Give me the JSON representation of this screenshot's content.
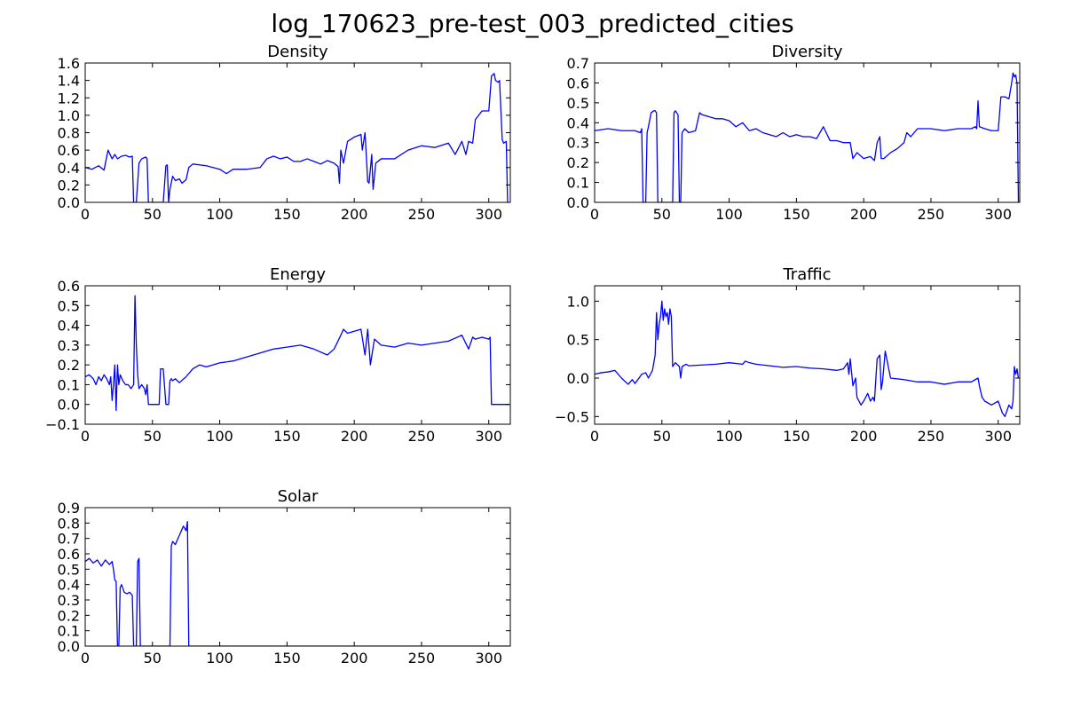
{
  "page": {
    "title": "log_170623_pre-test_003_predicted_cities"
  },
  "colors": {
    "line": "#0000ff",
    "axis": "#000000",
    "background": "#ffffff"
  },
  "chart_data": [
    {
      "type": "line",
      "title": "Density",
      "xlim": [
        0,
        316
      ],
      "ylim": [
        0.0,
        1.6
      ],
      "xticks": [
        0,
        50,
        100,
        150,
        200,
        250,
        300
      ],
      "yticks": [
        0.0,
        0.2,
        0.4,
        0.6,
        0.8,
        1.0,
        1.2,
        1.4,
        1.6
      ],
      "ytick_labels": [
        "0.0",
        "0.2",
        "0.4",
        "0.6",
        "0.8",
        "1.0",
        "1.2",
        "1.4",
        "1.6"
      ],
      "series": [
        {
          "x": [
            0,
            5,
            10,
            14,
            17,
            20,
            22,
            24,
            27,
            30,
            33,
            35,
            36,
            37,
            38,
            40,
            42,
            45,
            46,
            47,
            57,
            58,
            60,
            61,
            62,
            63,
            65,
            67,
            70,
            72,
            75,
            77,
            80,
            90,
            100,
            105,
            110,
            120,
            130,
            135,
            140,
            145,
            150,
            155,
            160,
            165,
            170,
            175,
            180,
            185,
            188,
            189,
            190,
            192,
            195,
            200,
            205,
            206,
            208,
            210,
            211,
            213,
            214,
            216,
            220,
            230,
            240,
            250,
            260,
            270,
            275,
            280,
            283,
            285,
            288,
            290,
            295,
            300,
            302,
            304,
            305,
            307,
            308,
            310,
            311,
            313,
            314,
            315
          ],
          "y": [
            0.4,
            0.38,
            0.42,
            0.37,
            0.6,
            0.5,
            0.55,
            0.5,
            0.53,
            0.54,
            0.52,
            0.53,
            0.0,
            0.0,
            0.0,
            0.45,
            0.5,
            0.52,
            0.5,
            0.0,
            0.0,
            0.0,
            0.42,
            0.43,
            0.0,
            0.15,
            0.3,
            0.25,
            0.27,
            0.22,
            0.26,
            0.4,
            0.44,
            0.42,
            0.38,
            0.33,
            0.38,
            0.38,
            0.4,
            0.5,
            0.53,
            0.5,
            0.52,
            0.47,
            0.47,
            0.5,
            0.47,
            0.44,
            0.48,
            0.45,
            0.41,
            0.22,
            0.6,
            0.45,
            0.7,
            0.75,
            0.78,
            0.6,
            0.8,
            0.24,
            0.22,
            0.55,
            0.15,
            0.45,
            0.5,
            0.5,
            0.6,
            0.65,
            0.63,
            0.68,
            0.55,
            0.7,
            0.55,
            0.7,
            0.68,
            0.95,
            1.05,
            1.05,
            1.45,
            1.48,
            1.4,
            1.38,
            1.4,
            0.72,
            0.68,
            0.7,
            0.0,
            0.0
          ]
        }
      ]
    },
    {
      "type": "line",
      "title": "Diversity",
      "xlim": [
        0,
        316
      ],
      "ylim": [
        0.0,
        0.7
      ],
      "xticks": [
        0,
        50,
        100,
        150,
        200,
        250,
        300
      ],
      "yticks": [
        0.0,
        0.1,
        0.2,
        0.3,
        0.4,
        0.5,
        0.6,
        0.7
      ],
      "ytick_labels": [
        "0.0",
        "0.1",
        "0.2",
        "0.3",
        "0.4",
        "0.5",
        "0.6",
        "0.7"
      ],
      "series": [
        {
          "x": [
            0,
            10,
            20,
            30,
            34,
            35,
            36,
            37,
            38,
            39,
            40,
            42,
            44,
            45,
            46,
            47,
            57,
            58,
            59,
            60,
            61,
            62,
            63,
            64,
            65,
            67,
            70,
            75,
            78,
            80,
            85,
            90,
            95,
            100,
            105,
            110,
            115,
            120,
            125,
            130,
            135,
            140,
            145,
            150,
            155,
            160,
            165,
            170,
            175,
            180,
            185,
            190,
            192,
            195,
            200,
            205,
            208,
            210,
            212,
            213,
            215,
            220,
            225,
            230,
            232,
            235,
            240,
            250,
            260,
            270,
            280,
            283,
            284,
            285,
            286,
            290,
            295,
            300,
            302,
            305,
            308,
            310,
            311,
            312,
            313,
            314,
            315
          ],
          "y": [
            0.36,
            0.37,
            0.36,
            0.36,
            0.35,
            0.37,
            0.0,
            0.0,
            0.0,
            0.35,
            0.38,
            0.45,
            0.46,
            0.46,
            0.45,
            0.0,
            0.0,
            0.0,
            0.45,
            0.46,
            0.45,
            0.44,
            0.0,
            0.0,
            0.35,
            0.37,
            0.35,
            0.36,
            0.45,
            0.44,
            0.43,
            0.42,
            0.42,
            0.41,
            0.38,
            0.4,
            0.36,
            0.37,
            0.35,
            0.34,
            0.33,
            0.35,
            0.33,
            0.34,
            0.33,
            0.33,
            0.32,
            0.38,
            0.31,
            0.31,
            0.3,
            0.3,
            0.22,
            0.25,
            0.22,
            0.23,
            0.21,
            0.3,
            0.33,
            0.22,
            0.22,
            0.25,
            0.27,
            0.3,
            0.35,
            0.33,
            0.37,
            0.37,
            0.36,
            0.37,
            0.37,
            0.38,
            0.37,
            0.51,
            0.38,
            0.37,
            0.36,
            0.36,
            0.53,
            0.53,
            0.52,
            0.6,
            0.65,
            0.63,
            0.64,
            0.6,
            0.0
          ]
        }
      ]
    },
    {
      "type": "line",
      "title": "Energy",
      "xlim": [
        0,
        316
      ],
      "ylim": [
        -0.1,
        0.6
      ],
      "xticks": [
        0,
        50,
        100,
        150,
        200,
        250,
        300
      ],
      "yticks": [
        -0.1,
        0.0,
        0.1,
        0.2,
        0.3,
        0.4,
        0.5,
        0.6
      ],
      "ytick_labels": [
        "−0.1",
        "0.0",
        "0.1",
        "0.2",
        "0.3",
        "0.4",
        "0.5",
        "0.6"
      ],
      "series": [
        {
          "x": [
            0,
            3,
            6,
            8,
            10,
            12,
            14,
            16,
            18,
            19,
            20,
            21,
            22,
            23,
            24,
            25,
            26,
            28,
            30,
            32,
            34,
            36,
            37,
            38,
            39,
            40,
            42,
            44,
            45,
            46,
            47,
            50,
            55,
            56,
            57,
            58,
            60,
            61,
            62,
            63,
            64,
            65,
            67,
            70,
            75,
            80,
            85,
            90,
            95,
            100,
            110,
            120,
            130,
            140,
            150,
            160,
            170,
            180,
            185,
            190,
            192,
            195,
            200,
            205,
            208,
            210,
            212,
            215,
            220,
            230,
            240,
            250,
            260,
            270,
            280,
            285,
            288,
            290,
            295,
            300,
            301,
            302,
            305,
            310,
            315
          ],
          "y": [
            0.14,
            0.15,
            0.13,
            0.1,
            0.14,
            0.12,
            0.15,
            0.13,
            0.1,
            0.14,
            0.02,
            0.1,
            0.2,
            -0.03,
            0.2,
            0.1,
            0.15,
            0.12,
            0.1,
            0.1,
            0.08,
            0.1,
            0.55,
            0.3,
            0.15,
            0.08,
            0.1,
            0.08,
            0.05,
            0.1,
            0.0,
            0.0,
            0.0,
            0.18,
            0.18,
            0.18,
            0.0,
            0.0,
            0.0,
            0.12,
            0.13,
            0.12,
            0.13,
            0.11,
            0.14,
            0.18,
            0.2,
            0.19,
            0.2,
            0.21,
            0.22,
            0.24,
            0.26,
            0.28,
            0.29,
            0.3,
            0.28,
            0.25,
            0.28,
            0.35,
            0.38,
            0.36,
            0.37,
            0.38,
            0.25,
            0.38,
            0.2,
            0.33,
            0.3,
            0.29,
            0.31,
            0.3,
            0.31,
            0.32,
            0.35,
            0.28,
            0.34,
            0.33,
            0.34,
            0.33,
            0.34,
            0.0,
            0.0,
            0.0,
            0.0
          ]
        }
      ]
    },
    {
      "type": "line",
      "title": "Traffic",
      "xlim": [
        0,
        316
      ],
      "ylim": [
        -0.6,
        1.2
      ],
      "xticks": [
        0,
        50,
        100,
        150,
        200,
        250,
        300
      ],
      "yticks": [
        -0.5,
        0.0,
        0.5,
        1.0
      ],
      "ytick_labels": [
        "−0.5",
        "0.0",
        "0.5",
        "1.0"
      ],
      "series": [
        {
          "x": [
            0,
            5,
            10,
            15,
            20,
            23,
            25,
            28,
            30,
            33,
            35,
            38,
            40,
            43,
            45,
            46,
            47,
            48,
            49,
            50,
            51,
            52,
            53,
            54,
            55,
            56,
            57,
            58,
            60,
            63,
            64,
            65,
            68,
            70,
            80,
            90,
            100,
            110,
            112,
            115,
            120,
            130,
            140,
            150,
            160,
            170,
            180,
            185,
            188,
            189,
            190,
            192,
            194,
            195,
            198,
            200,
            203,
            205,
            207,
            208,
            210,
            212,
            213,
            214,
            216,
            220,
            230,
            240,
            250,
            260,
            270,
            280,
            285,
            286,
            288,
            290,
            295,
            300,
            303,
            305,
            308,
            310,
            311,
            312,
            313,
            314,
            315
          ],
          "y": [
            0.05,
            0.07,
            0.08,
            0.1,
            0.0,
            -0.05,
            -0.08,
            -0.02,
            -0.07,
            0.0,
            0.05,
            0.07,
            0.0,
            0.1,
            0.3,
            0.85,
            0.5,
            0.7,
            0.8,
            1.0,
            0.75,
            0.9,
            0.8,
            0.85,
            0.7,
            0.9,
            0.8,
            0.15,
            0.2,
            0.15,
            0.0,
            0.15,
            0.18,
            0.16,
            0.17,
            0.18,
            0.2,
            0.18,
            0.22,
            0.2,
            0.18,
            0.16,
            0.14,
            0.15,
            0.13,
            0.12,
            0.1,
            0.12,
            0.2,
            0.05,
            0.25,
            -0.1,
            0.0,
            -0.25,
            -0.35,
            -0.3,
            -0.2,
            -0.3,
            -0.25,
            -0.3,
            0.25,
            0.3,
            -0.15,
            -0.05,
            0.35,
            0.0,
            -0.02,
            -0.05,
            -0.05,
            -0.08,
            -0.05,
            -0.05,
            0.0,
            -0.1,
            -0.25,
            -0.3,
            -0.35,
            -0.3,
            -0.45,
            -0.5,
            -0.35,
            -0.4,
            -0.3,
            0.15,
            0.05,
            0.12,
            0.0
          ]
        }
      ]
    },
    {
      "type": "line",
      "title": "Solar",
      "xlim": [
        0,
        316
      ],
      "ylim": [
        0.0,
        0.9
      ],
      "xticks": [
        0,
        50,
        100,
        150,
        200,
        250,
        300
      ],
      "yticks": [
        0.0,
        0.1,
        0.2,
        0.3,
        0.4,
        0.5,
        0.6,
        0.7,
        0.8,
        0.9
      ],
      "ytick_labels": [
        "0.0",
        "0.1",
        "0.2",
        "0.3",
        "0.4",
        "0.5",
        "0.6",
        "0.7",
        "0.8",
        "0.9"
      ],
      "series": [
        {
          "x": [
            0,
            3,
            6,
            9,
            12,
            15,
            18,
            20,
            21,
            22,
            23,
            24,
            25,
            26,
            27,
            29,
            31,
            33,
            35,
            36,
            37,
            38,
            39,
            40,
            41,
            42,
            63,
            64,
            65,
            67,
            69,
            71,
            73,
            75,
            76,
            77,
            315
          ],
          "y": [
            0.55,
            0.57,
            0.54,
            0.56,
            0.52,
            0.56,
            0.53,
            0.55,
            0.5,
            0.43,
            0.42,
            0.0,
            0.0,
            0.38,
            0.4,
            0.35,
            0.34,
            0.35,
            0.33,
            0.0,
            0.0,
            0.0,
            0.55,
            0.57,
            0.0,
            0.0,
            0.0,
            0.65,
            0.68,
            0.66,
            0.7,
            0.74,
            0.78,
            0.75,
            0.81,
            0.0,
            0.0
          ]
        }
      ]
    }
  ]
}
